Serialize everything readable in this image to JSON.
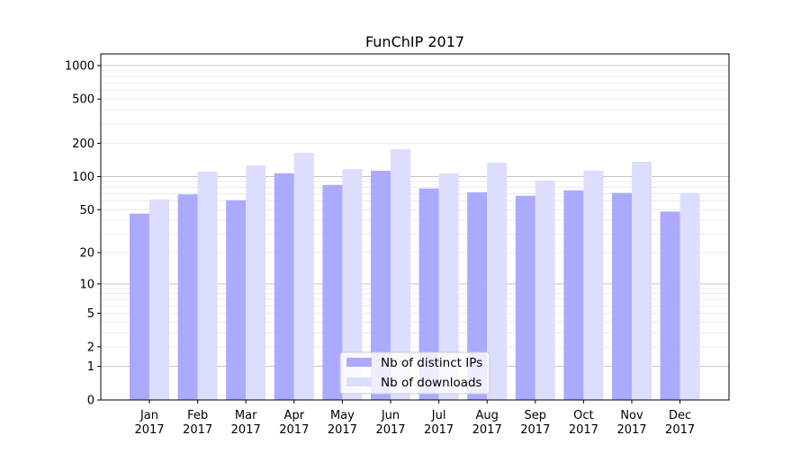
{
  "chart_data": {
    "type": "bar",
    "title": "FunChIP 2017",
    "xlabel": "",
    "ylabel": "",
    "yscale": "log10(1+x)",
    "ylim": [
      0,
      1250
    ],
    "grid": true,
    "legend_position": "lower-center",
    "categories": [
      "Jan\n2017",
      "Feb\n2017",
      "Mar\n2017",
      "Apr\n2017",
      "May\n2017",
      "Jun\n2017",
      "Jul\n2017",
      "Aug\n2017",
      "Sep\n2017",
      "Oct\n2017",
      "Nov\n2017",
      "Dec\n2017"
    ],
    "yticks": [
      0,
      1,
      2,
      5,
      10,
      20,
      50,
      100,
      200,
      500,
      1000
    ],
    "series": [
      {
        "name": "Nb of distinct IPs",
        "color": "#aaaaff",
        "values": [
          46,
          69,
          61,
          107,
          84,
          113,
          78,
          72,
          67,
          75,
          71,
          48
        ]
      },
      {
        "name": "Nb of downloads",
        "color": "#ddddff",
        "values": [
          62,
          111,
          126,
          164,
          117,
          177,
          107,
          134,
          92,
          113,
          136,
          71
        ]
      }
    ]
  }
}
